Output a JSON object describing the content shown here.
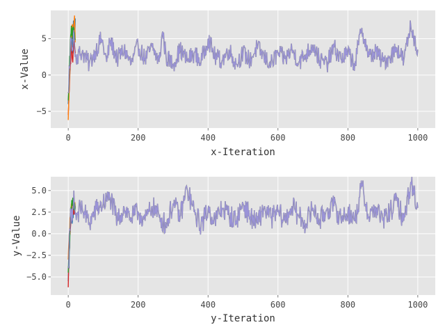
{
  "chart_data": [
    {
      "type": "line",
      "title": "",
      "xlabel": "x-Iteration",
      "ylabel": "x-Value",
      "xlim": [
        -50,
        1050
      ],
      "ylim": [
        -7.3,
        8.9
      ],
      "xticks": [
        0,
        200,
        400,
        600,
        800,
        1000
      ],
      "xtick_labels": [
        "0",
        "200",
        "400",
        "600",
        "800",
        "1000"
      ],
      "yticks": [
        -5,
        0,
        5
      ],
      "ytick_labels": [
        "−5",
        "0",
        "5"
      ],
      "grid": true,
      "legend": "none",
      "note": "many overlapping trace chains; early iterations (0–20) diverge across chains, then all chains overlap in a noisy band",
      "series": [
        {
          "color": "#9a93d8",
          "x": [
            0,
            4,
            8,
            12,
            16,
            20,
            40,
            60,
            80,
            95,
            110,
            120,
            140,
            160,
            180,
            200,
            220,
            240,
            260,
            270,
            280,
            300,
            320,
            340,
            360,
            380,
            400,
            420,
            440,
            460,
            480,
            500,
            520,
            540,
            560,
            580,
            600,
            620,
            640,
            660,
            680,
            700,
            720,
            740,
            760,
            780,
            800,
            820,
            840,
            860,
            880,
            900,
            920,
            940,
            960,
            980,
            1000
          ],
          "y": [
            -2.5,
            1.0,
            5.2,
            3.8,
            6.2,
            2.5,
            3.2,
            1.5,
            3.5,
            5.0,
            1.8,
            4.8,
            2.2,
            3.5,
            1.5,
            4.0,
            2.2,
            3.8,
            1.8,
            6.0,
            2.5,
            1.5,
            3.5,
            2.0,
            3.0,
            1.8,
            5.0,
            2.5,
            2.0,
            3.5,
            1.5,
            3.0,
            2.0,
            3.8,
            2.5,
            1.5,
            3.0,
            2.2,
            3.5,
            1.8,
            2.8,
            4.2,
            2.0,
            1.5,
            3.8,
            2.2,
            3.0,
            1.5,
            6.5,
            2.5,
            3.2,
            1.8,
            2.5,
            3.8,
            2.0,
            6.8,
            3.5
          ]
        },
        {
          "color": "#1f77b4",
          "x": [
            0,
            3,
            6,
            9,
            12,
            15,
            18,
            20
          ],
          "y": [
            -4.0,
            -1.5,
            2.5,
            6.5,
            3.0,
            7.5,
            5.0,
            7.8
          ]
        },
        {
          "color": "#d62728",
          "x": [
            0,
            3,
            6,
            9,
            12,
            15,
            18,
            20
          ],
          "y": [
            -5.5,
            -2.0,
            1.5,
            4.0,
            2.0,
            3.5,
            4.2,
            3.0
          ]
        },
        {
          "color": "#ff7f0e",
          "x": [
            0,
            3,
            6,
            9,
            12,
            15,
            18,
            20
          ],
          "y": [
            -6.2,
            -1.0,
            3.0,
            5.5,
            7.0,
            6.0,
            8.2,
            4.5
          ]
        },
        {
          "color": "#2ca02c",
          "x": [
            0,
            3,
            6,
            9,
            12,
            15,
            18,
            20
          ],
          "y": [
            -3.5,
            0.5,
            4.5,
            6.8,
            5.0,
            6.5,
            5.8,
            5.0
          ]
        }
      ]
    },
    {
      "type": "line",
      "title": "",
      "xlabel": "y-Iteration",
      "ylabel": "y-Value",
      "xlim": [
        -50,
        1050
      ],
      "ylim": [
        -7.1,
        6.6
      ],
      "xticks": [
        0,
        200,
        400,
        600,
        800,
        1000
      ],
      "xtick_labels": [
        "0",
        "200",
        "400",
        "600",
        "800",
        "1000"
      ],
      "yticks": [
        -5.0,
        -2.5,
        0.0,
        2.5,
        5.0
      ],
      "ytick_labels": [
        "−5.0",
        "−2.5",
        "0.0",
        "2.5",
        "5.0"
      ],
      "grid": true,
      "legend": "none",
      "note": "many overlapping trace chains; early iterations (0–20) diverge across chains, then all chains overlap in a noisy band",
      "series": [
        {
          "color": "#9a93d8",
          "x": [
            0,
            4,
            8,
            12,
            16,
            20,
            40,
            60,
            80,
            100,
            120,
            140,
            160,
            180,
            200,
            220,
            240,
            260,
            280,
            300,
            320,
            340,
            360,
            380,
            400,
            420,
            440,
            460,
            480,
            500,
            520,
            540,
            560,
            580,
            600,
            620,
            640,
            660,
            680,
            700,
            720,
            740,
            760,
            780,
            800,
            820,
            840,
            860,
            880,
            900,
            920,
            940,
            960,
            980,
            1000
          ],
          "y": [
            -4.0,
            0.5,
            2.8,
            1.5,
            5.0,
            2.2,
            3.0,
            1.2,
            2.8,
            3.5,
            4.2,
            1.5,
            3.0,
            1.8,
            2.5,
            1.5,
            3.2,
            2.0,
            1.0,
            3.5,
            2.0,
            5.2,
            2.5,
            1.0,
            2.8,
            1.5,
            3.0,
            2.2,
            1.5,
            3.5,
            2.0,
            1.2,
            3.0,
            1.8,
            2.5,
            1.5,
            3.2,
            2.0,
            1.2,
            3.0,
            1.5,
            2.8,
            3.2,
            1.8,
            2.5,
            1.5,
            5.5,
            2.0,
            3.0,
            1.5,
            2.5,
            3.8,
            1.5,
            6.0,
            3.0
          ]
        },
        {
          "color": "#1f77b4",
          "x": [
            0,
            3,
            6,
            9,
            12,
            15,
            18,
            20
          ],
          "y": [
            -5.5,
            -2.0,
            1.0,
            3.0,
            1.5,
            3.2,
            2.5,
            3.0
          ]
        },
        {
          "color": "#d62728",
          "x": [
            0,
            3,
            6,
            9,
            12,
            15,
            18,
            20
          ],
          "y": [
            -6.2,
            -1.5,
            0.5,
            2.0,
            2.8,
            2.2,
            3.0,
            2.5
          ]
        },
        {
          "color": "#ff7f0e",
          "x": [
            0,
            3,
            6,
            9,
            12,
            15,
            18,
            20
          ],
          "y": [
            -3.0,
            0.0,
            2.0,
            3.5,
            2.5,
            3.8,
            3.2,
            3.0
          ]
        },
        {
          "color": "#2ca02c",
          "x": [
            0,
            3,
            6,
            9,
            12,
            15,
            18,
            20
          ],
          "y": [
            -4.5,
            -1.0,
            1.5,
            2.8,
            3.5,
            3.0,
            3.6,
            2.8
          ]
        }
      ]
    }
  ]
}
